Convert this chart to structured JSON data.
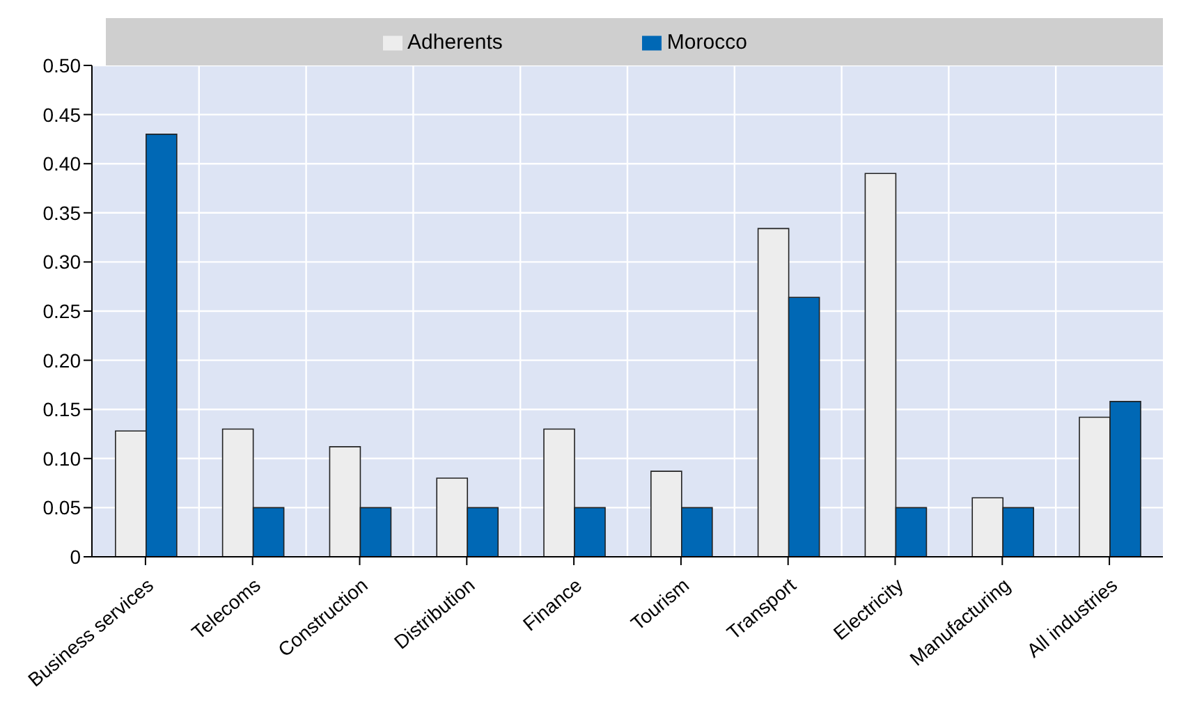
{
  "chart_data": {
    "type": "bar",
    "categories": [
      "Business services",
      "Telecoms",
      "Construction",
      "Distribution",
      "Finance",
      "Tourism",
      "Transport",
      "Electricity",
      "Manufacturing",
      "All industries"
    ],
    "series": [
      {
        "name": "Adherents",
        "color": "#ededed",
        "values": [
          0.128,
          0.13,
          0.112,
          0.08,
          0.13,
          0.087,
          0.334,
          0.39,
          0.06,
          0.142
        ]
      },
      {
        "name": "Morocco",
        "color": "#0068b5",
        "values": [
          0.43,
          0.05,
          0.05,
          0.05,
          0.05,
          0.05,
          0.264,
          0.05,
          0.05,
          0.158
        ]
      }
    ],
    "ylim": [
      0,
      0.5
    ],
    "yticks": [
      {
        "value": 0,
        "label": "0"
      },
      {
        "value": 0.05,
        "label": "0.05"
      },
      {
        "value": 0.1,
        "label": "0.10"
      },
      {
        "value": 0.15,
        "label": "0.15"
      },
      {
        "value": 0.2,
        "label": "0.20"
      },
      {
        "value": 0.25,
        "label": "0.25"
      },
      {
        "value": 0.3,
        "label": "0.30"
      },
      {
        "value": 0.35,
        "label": "0.35"
      },
      {
        "value": 0.4,
        "label": "0.40"
      },
      {
        "value": 0.45,
        "label": "0.45"
      },
      {
        "value": 0.5,
        "label": "0.50"
      }
    ],
    "grid": true,
    "legend": "top"
  }
}
